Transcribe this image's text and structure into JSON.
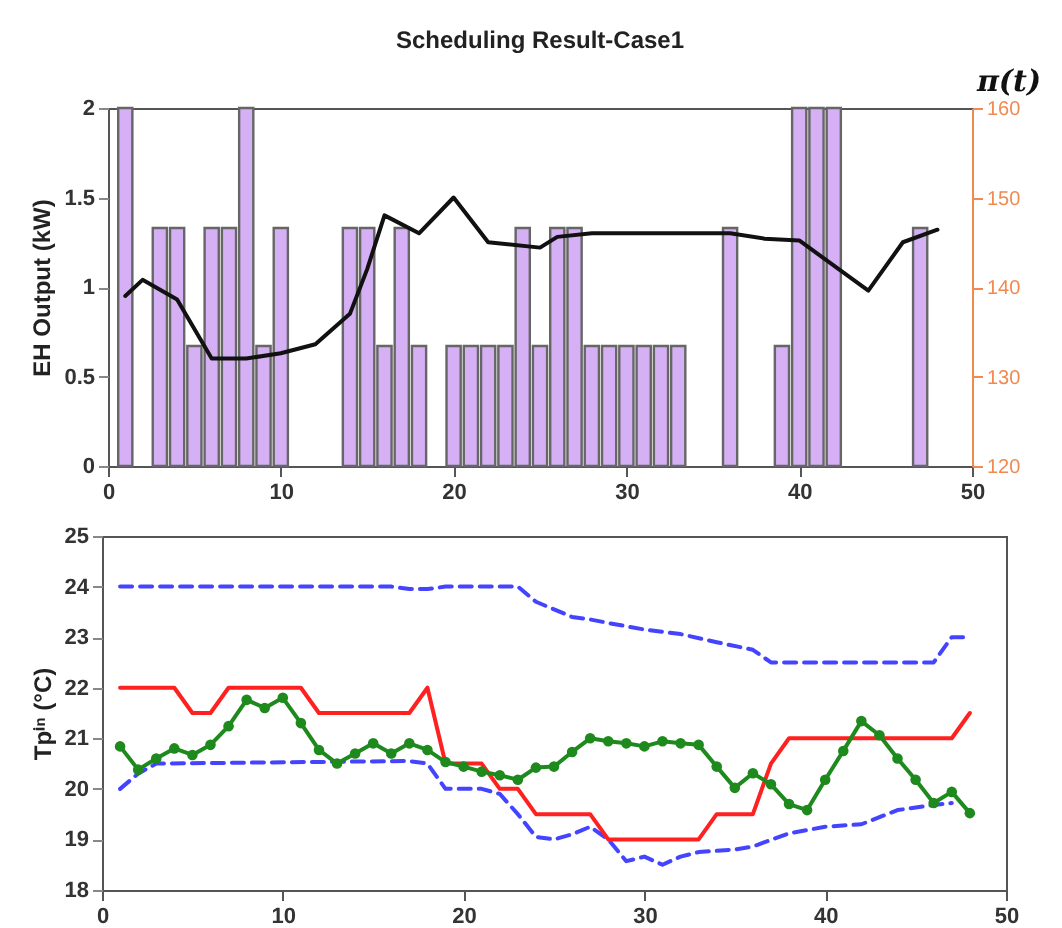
{
  "chart_data": [
    {
      "type": "bar",
      "title": "Scheduling Result-Case1",
      "ylabel": "EH Output (kW)",
      "y2label": "π(t)",
      "x": [
        1,
        2,
        3,
        4,
        5,
        6,
        7,
        8,
        9,
        10,
        11,
        12,
        13,
        14,
        15,
        16,
        17,
        18,
        19,
        20,
        21,
        22,
        23,
        24,
        25,
        26,
        27,
        28,
        29,
        30,
        31,
        32,
        33,
        34,
        35,
        36,
        37,
        38,
        39,
        40,
        41,
        42,
        43,
        44,
        45,
        46,
        47
      ],
      "series": [
        {
          "color": "#d5b0f5",
          "values": [
            2,
            null,
            1.33,
            1.33,
            0.67,
            1.33,
            1.33,
            2,
            0.67,
            1.33,
            null,
            null,
            null,
            1.33,
            1.33,
            0.67,
            1.33,
            0.67,
            null,
            0.67,
            0.67,
            0.67,
            0.67,
            1.33,
            0.67,
            1.33,
            1.33,
            0.67,
            0.67,
            0.67,
            0.67,
            0.67,
            0.67,
            null,
            null,
            1.33,
            null,
            null,
            0.67,
            2,
            2,
            2,
            null,
            null,
            null,
            null,
            1.33
          ]
        },
        {
          "type": "line",
          "axis": "y2",
          "color": "#111111",
          "x": [
            1,
            2,
            4,
            6,
            8,
            10,
            12,
            14,
            15,
            16,
            18,
            20,
            22,
            25,
            26,
            28,
            36,
            38,
            40,
            44,
            46,
            48
          ],
          "values": [
            139,
            140.8,
            138.6,
            132,
            132,
            132.6,
            133.6,
            137,
            142,
            148,
            146,
            150,
            145,
            144.4,
            145.6,
            146,
            146,
            145.4,
            145.2,
            139.6,
            145,
            146.4
          ]
        }
      ],
      "xlim": [
        0,
        50
      ],
      "xticks": [
        0,
        10,
        20,
        30,
        40,
        50
      ],
      "ylim": [
        0,
        2
      ],
      "yticks": [
        0,
        0.5,
        1,
        1.5,
        2
      ],
      "y2lim": [
        120,
        160
      ],
      "y2ticks": [
        120,
        130,
        140,
        150,
        160
      ]
    },
    {
      "type": "line",
      "ylabel": "Tpⁱⁿ (°C)",
      "x": [
        1,
        2,
        3,
        4,
        5,
        6,
        7,
        8,
        9,
        10,
        11,
        12,
        13,
        14,
        15,
        16,
        17,
        18,
        19,
        20,
        21,
        22,
        23,
        24,
        25,
        26,
        27,
        28,
        29,
        30,
        31,
        32,
        33,
        34,
        35,
        36,
        37,
        38,
        39,
        40,
        41,
        42,
        43,
        44,
        45,
        46,
        47,
        48
      ],
      "series": [
        {
          "color": "#4444ff",
          "line_style": "dashed",
          "x": [
            1,
            16,
            17,
            18,
            19,
            23,
            24,
            25,
            26,
            27,
            28,
            30,
            32,
            34,
            36,
            37,
            46,
            47,
            48
          ],
          "values": [
            24,
            24,
            23.95,
            23.95,
            24,
            24,
            23.7,
            23.55,
            23.4,
            23.35,
            23.28,
            23.15,
            23.06,
            22.9,
            22.75,
            22.5,
            22.5,
            23,
            23
          ]
        },
        {
          "color": "#4444ff",
          "line_style": "dashed",
          "x": [
            1,
            2,
            3,
            17,
            18,
            19,
            21,
            22,
            23,
            24,
            25,
            26,
            27,
            28,
            29,
            30,
            31,
            32,
            33,
            35,
            36,
            38,
            40,
            42,
            44,
            46,
            47
          ],
          "values": [
            20,
            20.3,
            20.5,
            20.55,
            20.5,
            20,
            20,
            19.9,
            19.5,
            19.05,
            19,
            19.1,
            19.25,
            19,
            18.57,
            18.66,
            18.5,
            18.66,
            18.75,
            18.8,
            18.86,
            19.12,
            19.25,
            19.3,
            19.58,
            19.68,
            19.72
          ]
        },
        {
          "color": "#ff2020",
          "values": [
            22,
            22,
            22,
            22,
            21.5,
            21.5,
            22,
            22,
            22,
            22,
            22,
            21.5,
            21.5,
            21.5,
            21.5,
            21.5,
            21.5,
            22,
            20.5,
            20.5,
            20.5,
            20,
            20,
            19.5,
            19.5,
            19.5,
            19.5,
            19,
            19,
            19,
            19,
            19,
            19,
            19.5,
            19.5,
            19.5,
            20.5,
            21,
            21,
            21,
            21,
            21,
            21,
            21,
            21,
            21,
            21,
            21.5
          ]
        },
        {
          "color": "#1e8a1e",
          "marker": "circle",
          "values": [
            20.84,
            20.38,
            20.6,
            20.8,
            20.67,
            20.87,
            21.24,
            21.76,
            21.6,
            21.8,
            21.3,
            20.77,
            20.5,
            20.7,
            20.9,
            20.7,
            20.9,
            20.77,
            20.53,
            20.44,
            20.34,
            20.27,
            20.18,
            20.42,
            20.44,
            20.73,
            21,
            20.94,
            20.9,
            20.84,
            20.94,
            20.9,
            20.87,
            20.44,
            20.02,
            20.31,
            20.09,
            19.7,
            19.58,
            20.18,
            20.75,
            21.34,
            21.06,
            20.6,
            20.18,
            19.72,
            19.94,
            19.52
          ]
        }
      ],
      "xlim": [
        0,
        50
      ],
      "xticks": [
        0,
        10,
        20,
        30,
        40,
        50
      ],
      "ylim": [
        18,
        25
      ],
      "yticks": [
        18,
        19,
        20,
        21,
        22,
        23,
        24,
        25
      ]
    }
  ]
}
